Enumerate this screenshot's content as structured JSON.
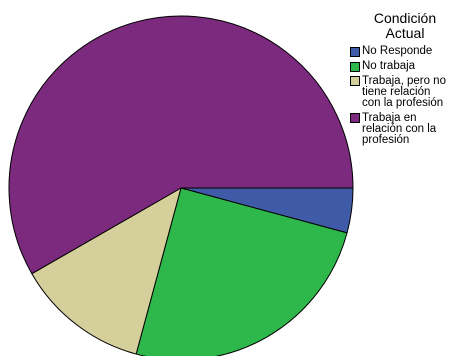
{
  "chart_data": {
    "type": "pie",
    "legend_title": "Condición\nActual",
    "legend_placement": "right",
    "start_angle_deg": 0,
    "direction": "clockwise",
    "slices": [
      {
        "label": "No Responde",
        "value": 4.2,
        "color": "#3f5aa6"
      },
      {
        "label": "No trabaja",
        "value": 25.0,
        "color": "#2eb84c"
      },
      {
        "label": "Trabaja, pero no tiene relación con la profesión",
        "value": 12.5,
        "color": "#d4cf9b"
      },
      {
        "label": "Trabaja en relación con la profesión",
        "value": 58.3,
        "color": "#7b2a7e"
      }
    ]
  },
  "legend": {
    "title": "Condición\nActual",
    "items": [
      {
        "label": "No Responde"
      },
      {
        "label": "No trabaja"
      },
      {
        "label": "Trabaja, pero no\ntiene relación\ncon la profesión"
      },
      {
        "label": "Trabaja en\nrelación con la\nprofesión"
      }
    ]
  }
}
